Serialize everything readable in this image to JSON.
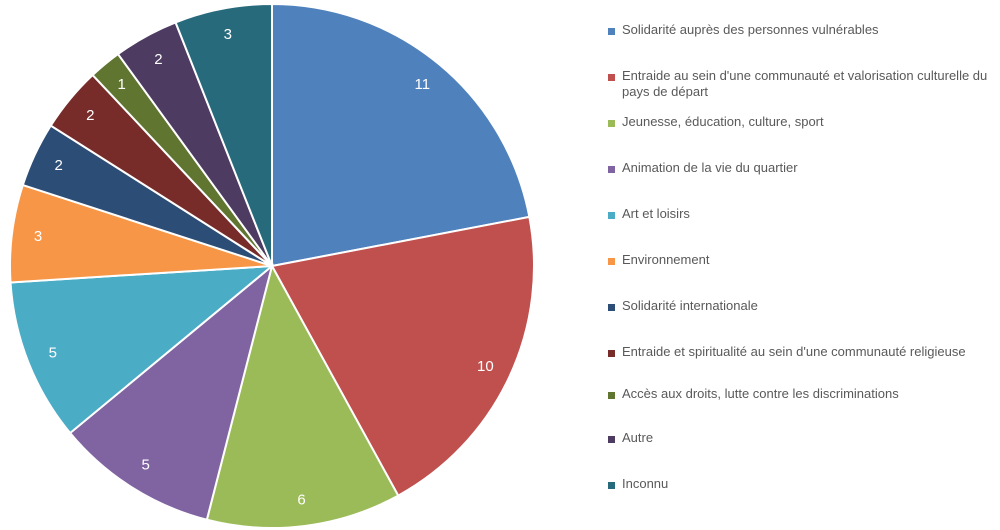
{
  "chart_data": {
    "type": "pie",
    "title": "",
    "legend_position": "right",
    "categories": [
      "Solidarité auprès des personnes vulnérables",
      "Entraide au sein d'une communauté et valorisation culturelle du pays de départ",
      "Jeunesse, éducation, culture, sport",
      "Animation de la vie du quartier",
      "Art et loisirs",
      "Environnement",
      "Solidarité internationale",
      "Entraide et spiritualité au sein d'une communauté religieuse",
      "Accès aux droits, lutte contre les discriminations",
      "Autre",
      "Inconnu"
    ],
    "values": [
      11,
      10,
      6,
      5,
      5,
      3,
      2,
      2,
      1,
      2,
      3
    ],
    "colors": [
      "#4F81BD",
      "#C0504D",
      "#9BBB59",
      "#8064A2",
      "#4BACC6",
      "#F79646",
      "#2C4D75",
      "#772C2A",
      "#5F7530",
      "#4D3B62",
      "#276A7C"
    ]
  }
}
